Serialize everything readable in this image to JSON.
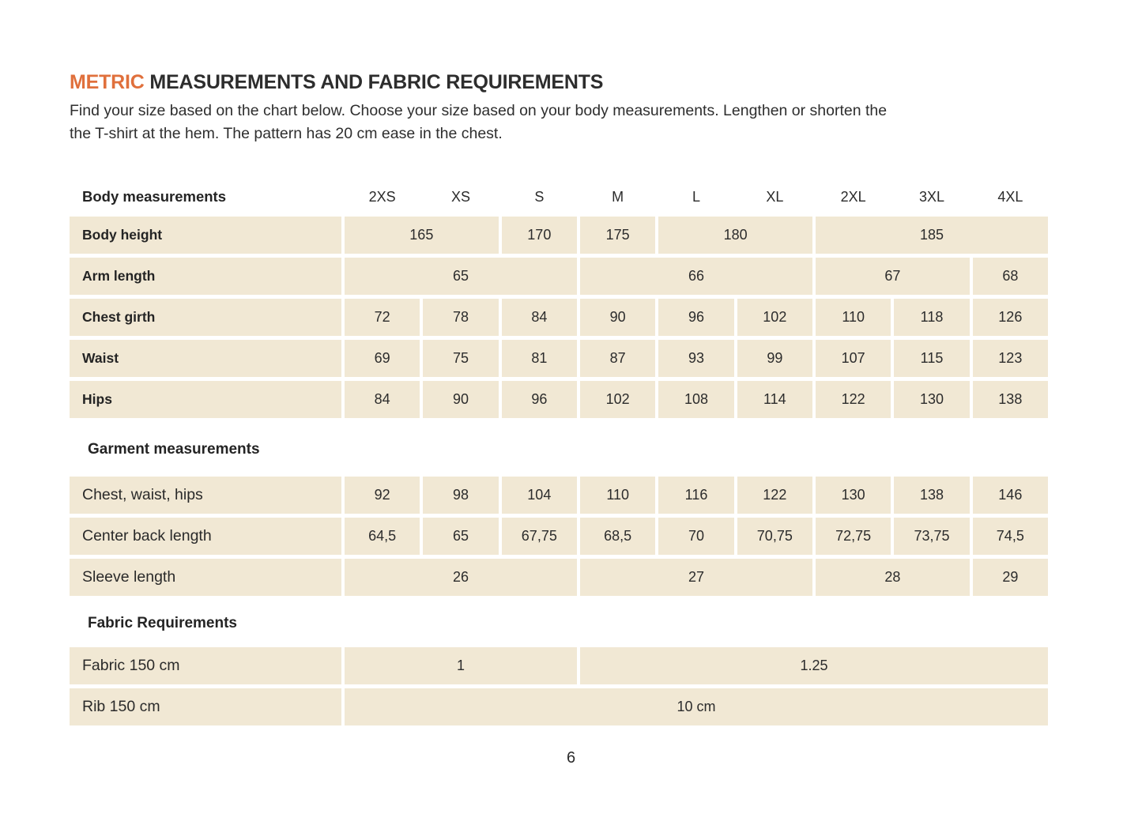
{
  "colors": {
    "accent_orange": "#E0703C",
    "cell_beige": "#F1E8D4",
    "text_dark": "#262626"
  },
  "page": {
    "number": "6"
  },
  "header": {
    "title_highlight": "METRIC",
    "title_rest": " MEASUREMENTS AND FABRIC REQUIREMENTS",
    "intro_line1": "Find your size based on the chart below. Choose your size based on your body measurements. Lengthen or shorten the",
    "intro_line2": "the T-shirt at the hem. The pattern has 20 cm ease in the chest."
  },
  "table": {
    "corner_label": "Body measurements",
    "sizes": [
      "2XS",
      "XS",
      "S",
      "M",
      "L",
      "XL",
      "2XL",
      "3XL",
      "4XL"
    ],
    "sections": [
      {
        "heading": null,
        "rows": [
          {
            "label": "Body height",
            "cells": [
              {
                "value": "165",
                "span": 2
              },
              {
                "value": "170",
                "span": 1
              },
              {
                "value": "175",
                "span": 1
              },
              {
                "value": "180",
                "span": 2
              },
              {
                "value": "185",
                "span": 3
              }
            ]
          },
          {
            "label": "Arm length",
            "cells": [
              {
                "value": "65",
                "span": 3
              },
              {
                "value": "66",
                "span": 3
              },
              {
                "value": "67",
                "span": 2
              },
              {
                "value": "68",
                "span": 1
              }
            ]
          },
          {
            "label": "Chest girth",
            "cells": [
              {
                "value": "72",
                "span": 1
              },
              {
                "value": "78",
                "span": 1
              },
              {
                "value": "84",
                "span": 1
              },
              {
                "value": "90",
                "span": 1
              },
              {
                "value": "96",
                "span": 1
              },
              {
                "value": "102",
                "span": 1
              },
              {
                "value": "110",
                "span": 1
              },
              {
                "value": "118",
                "span": 1
              },
              {
                "value": "126",
                "span": 1
              }
            ]
          },
          {
            "label": "Waist",
            "cells": [
              {
                "value": "69",
                "span": 1
              },
              {
                "value": "75",
                "span": 1
              },
              {
                "value": "81",
                "span": 1
              },
              {
                "value": "87",
                "span": 1
              },
              {
                "value": "93",
                "span": 1
              },
              {
                "value": "99",
                "span": 1
              },
              {
                "value": "107",
                "span": 1
              },
              {
                "value": "115",
                "span": 1
              },
              {
                "value": "123",
                "span": 1
              }
            ]
          },
          {
            "label": "Hips",
            "cells": [
              {
                "value": "84",
                "span": 1
              },
              {
                "value": "90",
                "span": 1
              },
              {
                "value": "96",
                "span": 1
              },
              {
                "value": "102",
                "span": 1
              },
              {
                "value": "108",
                "span": 1
              },
              {
                "value": "114",
                "span": 1
              },
              {
                "value": "122",
                "span": 1
              },
              {
                "value": "130",
                "span": 1
              },
              {
                "value": "138",
                "span": 1
              }
            ]
          }
        ]
      },
      {
        "heading": "Garment measurements",
        "rows": [
          {
            "label": "Chest, waist, hips",
            "cells": [
              {
                "value": "92",
                "span": 1
              },
              {
                "value": "98",
                "span": 1
              },
              {
                "value": "104",
                "span": 1
              },
              {
                "value": "110",
                "span": 1
              },
              {
                "value": "116",
                "span": 1
              },
              {
                "value": "122",
                "span": 1
              },
              {
                "value": "130",
                "span": 1
              },
              {
                "value": "138",
                "span": 1
              },
              {
                "value": "146",
                "span": 1
              }
            ]
          },
          {
            "label": "Center back length",
            "cells": [
              {
                "value": "64,5",
                "span": 1
              },
              {
                "value": "65",
                "span": 1
              },
              {
                "value": "67,75",
                "span": 1
              },
              {
                "value": "68,5",
                "span": 1
              },
              {
                "value": "70",
                "span": 1
              },
              {
                "value": "70,75",
                "span": 1
              },
              {
                "value": "72,75",
                "span": 1
              },
              {
                "value": "73,75",
                "span": 1
              },
              {
                "value": "74,5",
                "span": 1
              }
            ]
          },
          {
            "label": "Sleeve length",
            "cells": [
              {
                "value": "26",
                "span": 3
              },
              {
                "value": "27",
                "span": 3
              },
              {
                "value": "28",
                "span": 2
              },
              {
                "value": "29",
                "span": 1
              }
            ]
          }
        ]
      },
      {
        "heading": "Fabric Requirements",
        "rows": [
          {
            "label": "Fabric 150 cm",
            "cells": [
              {
                "value": "1",
                "span": 3
              },
              {
                "value": "1.25",
                "span": 6
              }
            ]
          },
          {
            "label": "Rib 150 cm",
            "cells": [
              {
                "value": "10 cm",
                "span": 9
              }
            ]
          }
        ]
      }
    ]
  }
}
